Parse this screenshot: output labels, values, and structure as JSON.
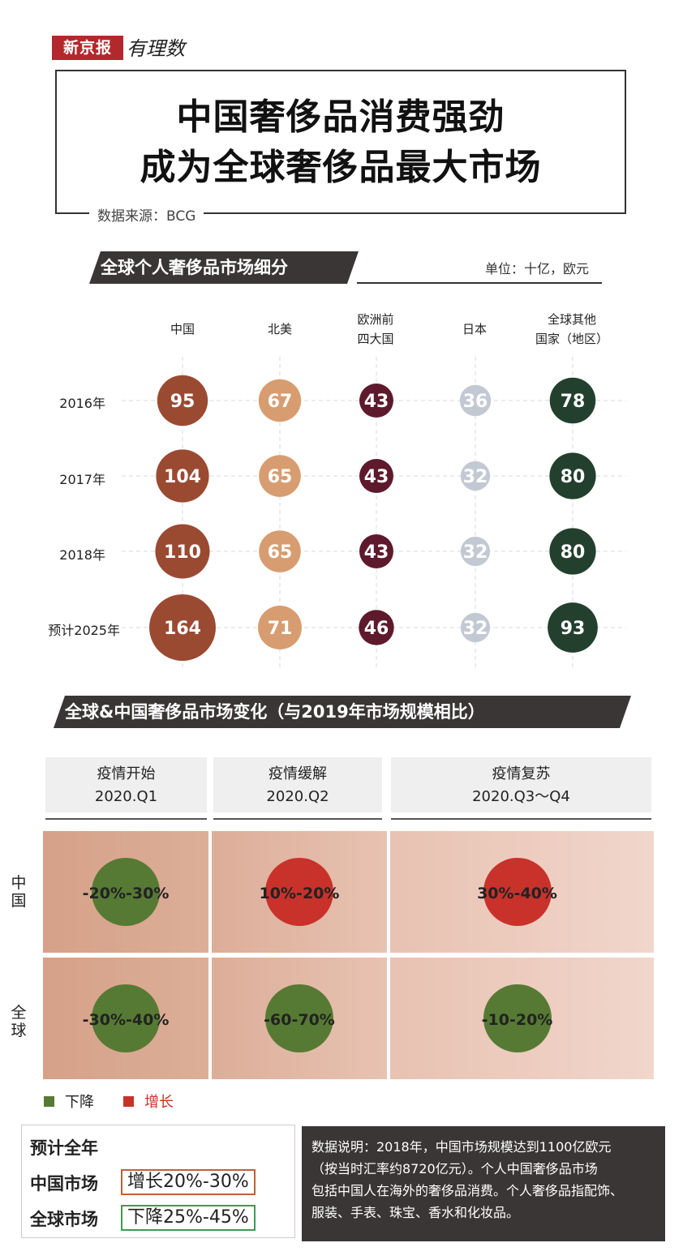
{
  "header": {
    "logo_text": "新京报",
    "logo_script": "有理数",
    "title_line1": "中国奢侈品消费强劲",
    "title_line2": "成为全球奢侈品最大市场",
    "source": "数据来源：BCG"
  },
  "section1": {
    "title": "全球个人奢侈品市场细分",
    "unit": "单位：十亿，欧元",
    "columns": [
      [
        "中国"
      ],
      [
        "北美"
      ],
      [
        "欧洲前",
        "四大国"
      ],
      [
        "日本"
      ],
      [
        "全球其他",
        "国家（地区）"
      ]
    ],
    "rows": [
      "2016年",
      "2017年",
      "2018年",
      "预计2025年"
    ]
  },
  "chart_data": [
    {
      "type": "scatter",
      "title": "全球个人奢侈品市场细分",
      "categories": [
        "2016年",
        "2017年",
        "2018年",
        "预计2025年"
      ],
      "series": [
        {
          "name": "中国",
          "values": [
            95,
            104,
            110,
            164
          ],
          "color": "#9b4a32"
        },
        {
          "name": "北美",
          "values": [
            67,
            65,
            65,
            71
          ],
          "color": "#d79d70"
        },
        {
          "name": "欧洲前四大国",
          "values": [
            43,
            43,
            43,
            46
          ],
          "color": "#5e1a2c"
        },
        {
          "name": "日本",
          "values": [
            36,
            32,
            32,
            32
          ],
          "color": "#c3c9d3"
        },
        {
          "name": "全球其他国家（地区）",
          "values": [
            78,
            80,
            80,
            93
          ],
          "color": "#23402f"
        }
      ]
    },
    {
      "type": "table",
      "title": "全球&中国奢侈品市场变化（与2019年市场规模相比）",
      "periods": [
        {
          "phase": "疫情开始",
          "quarter": "2020.Q1"
        },
        {
          "phase": "疫情缓解",
          "quarter": "2020.Q2"
        },
        {
          "phase": "疫情复苏",
          "quarter": "2020.Q3～Q4"
        }
      ],
      "rows": [
        {
          "name": "中国",
          "cells": [
            {
              "label": "-20%-30%",
              "trend": "down"
            },
            {
              "label": "10%-20%",
              "trend": "up"
            },
            {
              "label": "30%-40%",
              "trend": "up"
            }
          ]
        },
        {
          "name": "全球",
          "cells": [
            {
              "label": "-30%-40%",
              "trend": "down"
            },
            {
              "label": "-60-70%",
              "trend": "down"
            },
            {
              "label": "-10-20%",
              "trend": "down"
            }
          ]
        }
      ],
      "legend": [
        {
          "label": "下降",
          "color": "#567a33"
        },
        {
          "label": "增长",
          "color": "#c8322b"
        }
      ]
    }
  ],
  "section2": {
    "title": "全球&中国奢侈品市场变化（与2019年市场规模相比）",
    "row_labels": [
      "中国",
      "全球"
    ]
  },
  "legend": {
    "down_label": "下降",
    "up_label": "增长"
  },
  "forecast": {
    "title": "预计全年",
    "china_label": "中国市场",
    "china_value": "增长20%-30%",
    "global_label": "全球市场",
    "global_value": "下降25%-45%"
  },
  "note": {
    "lines": [
      "数据说明：2018年，中国市场规模达到1100亿欧元",
      "（按当时汇率约8720亿元）。个人中国奢侈品市场",
      "包括中国人在海外的奢侈品消费。个人奢侈品指配饰、",
      "服装、手表、珠宝、香水和化妆品。"
    ]
  },
  "colors": {
    "down": "#567a33",
    "up": "#c8322b",
    "dark_bar": "#3b3636"
  }
}
